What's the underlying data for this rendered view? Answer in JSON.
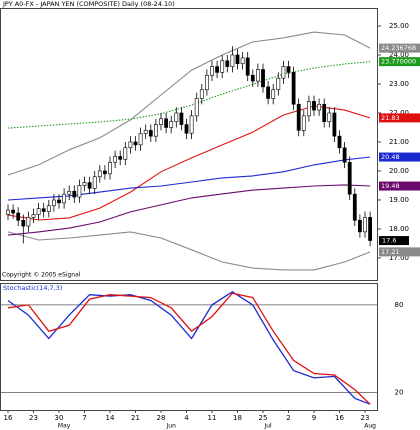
{
  "chart_data": [
    {
      "type": "candlestick",
      "title": "JPY A0-FX - JAPAN YEN (COMPOSITE) Daily (08-24.10)",
      "footnote": "Copyright © 2005 eSignal",
      "open": [
        18.5,
        18.65,
        18.55,
        18.3,
        18.1,
        18.4,
        18.5,
        18.7,
        18.6,
        18.8,
        19.0,
        18.9,
        19.2,
        19.3,
        19.1,
        19.5,
        19.6,
        19.4,
        19.8,
        20.0,
        19.9,
        20.3,
        20.5,
        20.4,
        20.8,
        21.0,
        20.9,
        21.3,
        21.4,
        21.2,
        21.6,
        21.8,
        21.5,
        21.7,
        22.0,
        21.6,
        21.3,
        21.9,
        22.5,
        22.8,
        23.3,
        23.6,
        23.4,
        23.8,
        23.6,
        24.0,
        23.7,
        23.9,
        23.3,
        23.1,
        23.5,
        22.9,
        22.5,
        22.8,
        23.2,
        23.6,
        23.4,
        22.3,
        21.4,
        21.9,
        22.4,
        22.1,
        22.3,
        21.7,
        22.0,
        21.2,
        20.8,
        20.3,
        19.2,
        18.3,
        17.9,
        18.4
      ],
      "high": [
        18.85,
        18.85,
        18.75,
        18.5,
        18.6,
        18.7,
        18.9,
        18.9,
        19.0,
        19.2,
        19.2,
        19.4,
        19.5,
        19.5,
        19.7,
        19.8,
        19.8,
        20.0,
        20.2,
        20.2,
        20.5,
        20.7,
        20.7,
        21.0,
        21.2,
        21.2,
        21.5,
        21.6,
        21.6,
        21.8,
        22.0,
        22.0,
        21.9,
        22.2,
        22.2,
        21.8,
        22.1,
        22.7,
        23.0,
        23.5,
        23.8,
        23.8,
        24.0,
        24.0,
        24.3,
        24.2,
        24.1,
        24.1,
        23.5,
        23.7,
        23.7,
        23.1,
        23.0,
        23.4,
        23.8,
        23.8,
        23.6,
        22.5,
        22.1,
        22.6,
        22.6,
        22.5,
        22.5,
        22.2,
        22.2,
        21.4,
        21.0,
        20.5,
        19.4,
        18.5,
        18.6,
        18.6
      ],
      "low": [
        18.3,
        18.35,
        18.1,
        17.5,
        17.9,
        18.2,
        18.3,
        18.4,
        18.4,
        18.6,
        18.7,
        18.7,
        19.0,
        18.9,
        18.9,
        19.3,
        19.2,
        19.2,
        19.6,
        19.7,
        19.7,
        20.1,
        20.2,
        20.2,
        20.6,
        20.7,
        20.7,
        21.1,
        21.0,
        21.0,
        21.4,
        21.3,
        21.3,
        21.5,
        21.4,
        21.1,
        21.1,
        21.7,
        22.3,
        22.6,
        23.1,
        23.2,
        23.2,
        23.4,
        23.4,
        23.5,
        23.5,
        23.1,
        22.9,
        22.9,
        22.7,
        22.3,
        22.3,
        22.6,
        23.0,
        23.2,
        22.1,
        21.2,
        21.2,
        21.7,
        21.9,
        21.9,
        21.5,
        21.5,
        21.0,
        20.6,
        20.1,
        19.0,
        18.1,
        17.7,
        17.7,
        17.4
      ],
      "close": [
        18.65,
        18.55,
        18.3,
        18.1,
        18.4,
        18.5,
        18.7,
        18.6,
        18.8,
        19.0,
        18.9,
        19.2,
        19.3,
        19.1,
        19.5,
        19.6,
        19.4,
        19.8,
        20.0,
        19.9,
        20.3,
        20.5,
        20.4,
        20.8,
        21.0,
        20.9,
        21.3,
        21.4,
        21.2,
        21.6,
        21.8,
        21.5,
        21.7,
        22.0,
        21.6,
        21.3,
        21.9,
        22.5,
        22.8,
        23.3,
        23.6,
        23.4,
        23.8,
        23.6,
        24.0,
        23.7,
        23.9,
        23.3,
        23.1,
        23.5,
        22.9,
        22.5,
        22.8,
        23.2,
        23.6,
        23.4,
        22.3,
        21.4,
        21.9,
        22.4,
        22.1,
        22.3,
        21.7,
        22.0,
        21.2,
        20.8,
        20.3,
        19.2,
        18.3,
        17.9,
        18.4,
        17.6
      ],
      "up_color": "#ffffff",
      "down_color": "#000000",
      "ylim": [
        16.24,
        25.62
      ],
      "yticks": [
        {
          "value": 25,
          "label": "25.00"
        },
        {
          "value": 24,
          "label": "24.00"
        },
        {
          "value": 23,
          "label": "23.00"
        },
        {
          "value": 22,
          "label": "22.00"
        },
        {
          "value": 21,
          "label": "21.00"
        },
        {
          "value": 20,
          "label": "20.00"
        },
        {
          "value": 19,
          "label": "19.00"
        },
        {
          "value": 18,
          "label": "18.00"
        },
        {
          "value": 17,
          "label": "17.00"
        }
      ],
      "overlays": [
        {
          "color": "#8a8a8a",
          "style": "solid",
          "label": "24.236768",
          "x": [
            0,
            6,
            12,
            18,
            24,
            30,
            36,
            42,
            48,
            54,
            60,
            66,
            71
          ],
          "values": [
            19.86,
            20.21,
            20.73,
            21.14,
            21.76,
            22.62,
            23.48,
            24.0,
            24.45,
            24.59,
            24.79,
            24.69,
            24.236768
          ]
        },
        {
          "color": "#8a8a8a",
          "style": "solid",
          "label": "17.21",
          "x": [
            0,
            6,
            12,
            18,
            24,
            30,
            36,
            42,
            48,
            54,
            60,
            66,
            71
          ],
          "values": [
            17.9,
            17.62,
            17.69,
            17.79,
            17.9,
            17.69,
            17.28,
            16.86,
            16.65,
            16.59,
            16.59,
            16.86,
            17.21
          ]
        },
        {
          "color": "#1f9a1f",
          "style": "dotted",
          "label": "23.770000",
          "x": [
            0,
            6,
            12,
            18,
            24,
            30,
            36,
            42,
            48,
            54,
            60,
            66,
            71
          ],
          "values": [
            21.48,
            21.55,
            21.62,
            21.69,
            21.79,
            21.97,
            22.27,
            22.65,
            22.99,
            23.34,
            23.55,
            23.69,
            23.77
          ]
        },
        {
          "color": "#e01010",
          "style": "solid",
          "label": "21.83",
          "x": [
            0,
            6,
            12,
            18,
            24,
            30,
            36,
            42,
            48,
            54,
            60,
            66,
            71
          ],
          "values": [
            18.48,
            18.31,
            18.38,
            18.72,
            19.27,
            19.97,
            20.45,
            20.9,
            21.34,
            21.93,
            22.24,
            22.1,
            21.83
          ]
        },
        {
          "color": "#1a2ad0",
          "style": "solid",
          "label": "20.48",
          "x": [
            0,
            6,
            12,
            18,
            24,
            30,
            36,
            42,
            48,
            54,
            60,
            66,
            71
          ],
          "values": [
            19.0,
            19.07,
            19.14,
            19.27,
            19.41,
            19.48,
            19.62,
            19.76,
            19.83,
            19.97,
            20.21,
            20.38,
            20.48
          ]
        },
        {
          "color": "#6a0a6a",
          "style": "solid",
          "label": "19.48",
          "x": [
            0,
            6,
            12,
            18,
            24,
            30,
            36,
            42,
            48,
            54,
            60,
            66,
            71
          ],
          "values": [
            17.79,
            17.9,
            18.03,
            18.24,
            18.59,
            18.83,
            19.07,
            19.21,
            19.34,
            19.41,
            19.48,
            19.52,
            19.48
          ]
        }
      ]
    },
    {
      "type": "line",
      "title": "Stochastic(14,7,3)",
      "ylim": [
        8,
        95
      ],
      "yticks": [
        80,
        20
      ],
      "grid": true,
      "series": [
        {
          "color": "#1a2ad0",
          "x": [
            0,
            4,
            8,
            12,
            16,
            20,
            24,
            28,
            32,
            36,
            40,
            44,
            48,
            52,
            56,
            60,
            64,
            68,
            71
          ],
          "values": [
            83,
            73,
            57,
            73,
            87,
            86,
            87,
            83,
            73,
            57,
            80,
            89,
            80,
            56,
            35,
            30,
            31,
            16,
            12
          ]
        },
        {
          "color": "#e01010",
          "x": [
            0,
            4,
            8,
            12,
            16,
            20,
            24,
            28,
            32,
            36,
            40,
            44,
            48,
            52,
            56,
            60,
            64,
            68,
            71
          ],
          "values": [
            78,
            80,
            62,
            66,
            84,
            87,
            86,
            85,
            78,
            62,
            72,
            88,
            85,
            62,
            42,
            33,
            32,
            22,
            12
          ]
        }
      ],
      "xticks": [
        {
          "value": 0,
          "label": "16"
        },
        {
          "value": 5,
          "label": "23"
        },
        {
          "value": 10,
          "label": "30"
        },
        {
          "value": 15,
          "label": "7"
        },
        {
          "value": 20,
          "label": "14"
        },
        {
          "value": 25,
          "label": "21"
        },
        {
          "value": 30,
          "label": "28"
        },
        {
          "value": 35,
          "label": "4"
        },
        {
          "value": 40,
          "label": "11"
        },
        {
          "value": 45,
          "label": "18"
        },
        {
          "value": 50,
          "label": "25"
        },
        {
          "value": 55,
          "label": "2"
        },
        {
          "value": 60,
          "label": "9"
        },
        {
          "value": 65,
          "label": "16"
        },
        {
          "value": 70,
          "label": "23"
        }
      ],
      "month_ticks": [
        {
          "value": 11,
          "label": "May"
        },
        {
          "value": 32,
          "label": "Jun"
        },
        {
          "value": 51,
          "label": "Jul"
        },
        {
          "value": 71,
          "label": "Aug"
        }
      ]
    }
  ]
}
